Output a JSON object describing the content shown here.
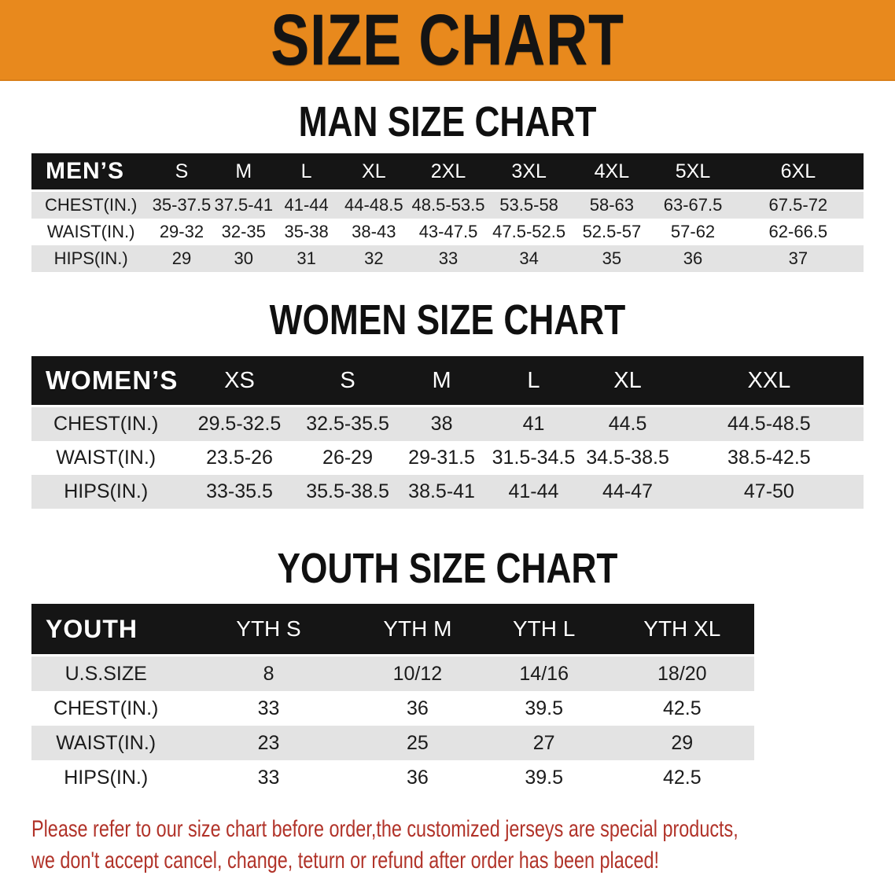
{
  "banner": {
    "title": "SIZE CHART",
    "background_color": "#E8891D",
    "text_color": "#141414"
  },
  "colors": {
    "header_band": "#151515",
    "stripe_row": "#E3E3E3",
    "body_text": "#1B1B1B",
    "footer_text": "#B13329"
  },
  "sections": {
    "men": {
      "title": "MAN SIZE CHART",
      "corner_label": "MEN’S",
      "columns": [
        "S",
        "M",
        "L",
        "XL",
        "2XL",
        "3XL",
        "4XL",
        "5XL",
        "6XL"
      ],
      "rows": [
        {
          "label": "CHEST(IN.)",
          "values": [
            "35-37.5",
            "37.5-41",
            "41-44",
            "44-48.5",
            "48.5-53.5",
            "53.5-58",
            "58-63",
            "63-67.5",
            "67.5-72"
          ]
        },
        {
          "label": "WAIST(IN.)",
          "values": [
            "29-32",
            "32-35",
            "35-38",
            "38-43",
            "43-47.5",
            "47.5-52.5",
            "52.5-57",
            "57-62",
            "62-66.5"
          ]
        },
        {
          "label": "HIPS(IN.)",
          "values": [
            "29",
            "30",
            "31",
            "32",
            "33",
            "34",
            "35",
            "36",
            "37"
          ]
        }
      ]
    },
    "women": {
      "title": "WOMEN SIZE CHART",
      "corner_label": "WOMEN’S",
      "columns": [
        "XS",
        "S",
        "M",
        "L",
        "XL",
        "XXL"
      ],
      "rows": [
        {
          "label": "CHEST(IN.)",
          "values": [
            "29.5-32.5",
            "32.5-35.5",
            "38",
            "41",
            "44.5",
            "44.5-48.5"
          ]
        },
        {
          "label": "WAIST(IN.)",
          "values": [
            "23.5-26",
            "26-29",
            "29-31.5",
            "31.5-34.5",
            "34.5-38.5",
            "38.5-42.5"
          ]
        },
        {
          "label": "HIPS(IN.)",
          "values": [
            "33-35.5",
            "35.5-38.5",
            "38.5-41",
            "41-44",
            "44-47",
            "47-50"
          ]
        }
      ]
    },
    "youth": {
      "title": "YOUTH SIZE CHART",
      "corner_label": "YOUTH",
      "columns": [
        "YTH S",
        "YTH M",
        "YTH L",
        "YTH XL"
      ],
      "rows": [
        {
          "label": "U.S.SIZE",
          "values": [
            "8",
            "10/12",
            "14/16",
            "18/20"
          ]
        },
        {
          "label": "CHEST(IN.)",
          "values": [
            "33",
            "36",
            "39.5",
            "42.5"
          ]
        },
        {
          "label": "WAIST(IN.)",
          "values": [
            "23",
            "25",
            "27",
            "29"
          ]
        },
        {
          "label": "HIPS(IN.)",
          "values": [
            "33",
            "36",
            "39.5",
            "42.5"
          ]
        }
      ]
    }
  },
  "footer": {
    "lines": [
      "Please refer to our size chart before order,the customized jerseys are special products,",
      "we don't accept cancel, change, teturn or refund after order has been placed!"
    ]
  }
}
